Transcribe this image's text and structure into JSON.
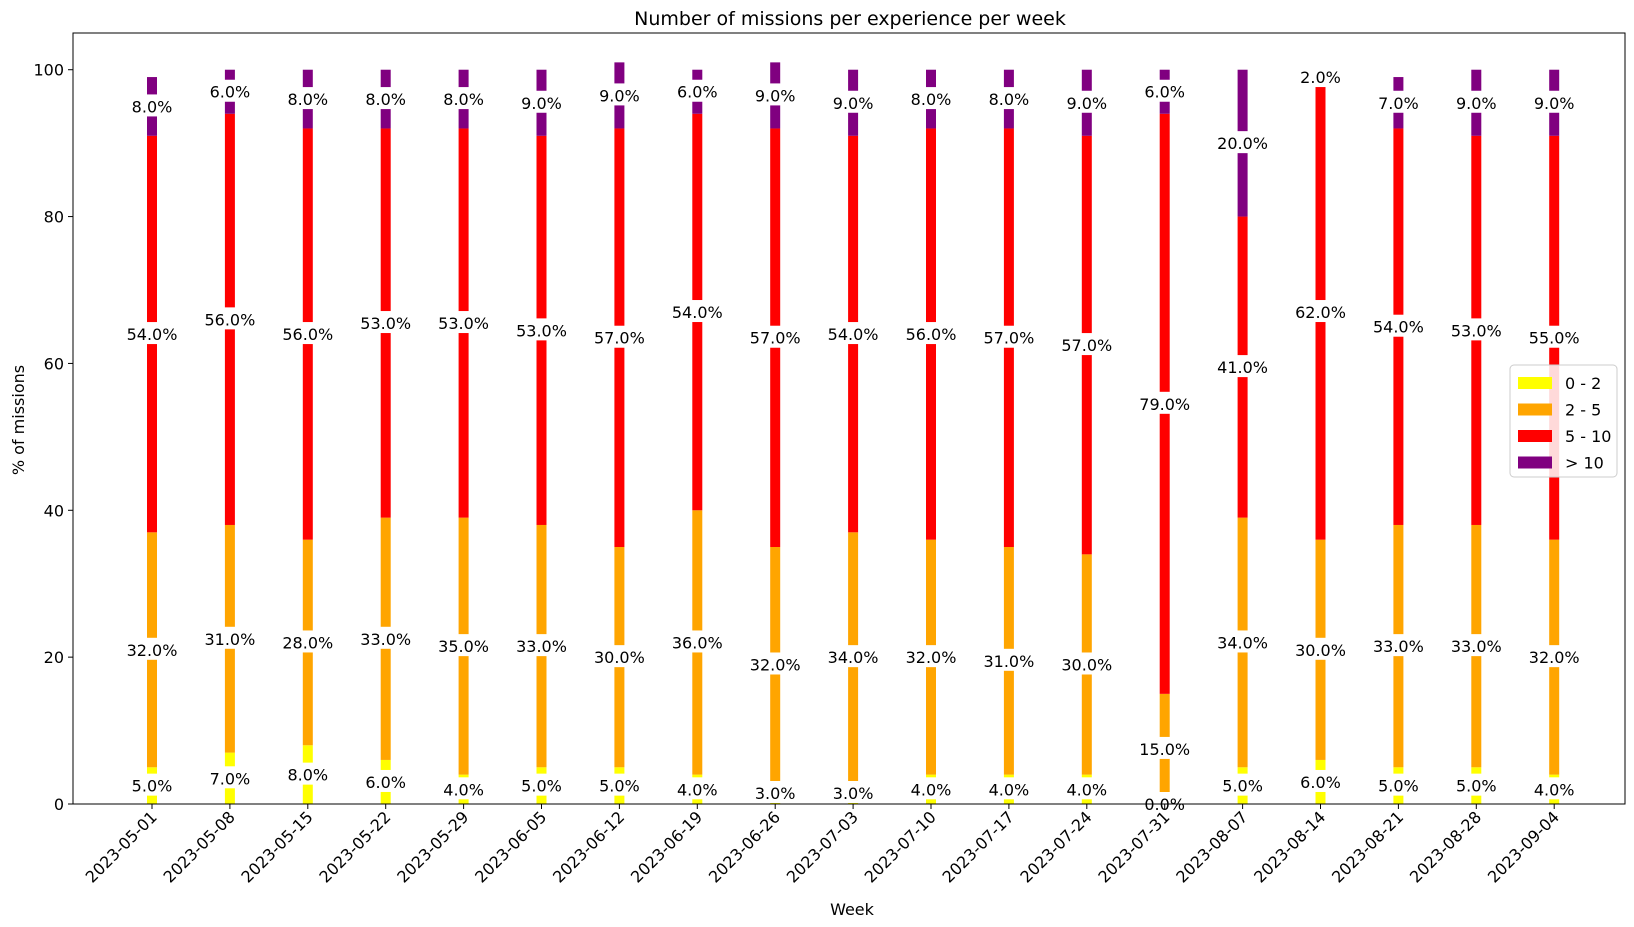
{
  "chart_data": {
    "type": "bar",
    "stacked": true,
    "title": "Number of missions per experience per week",
    "xlabel": "Week",
    "ylabel": "% of missions",
    "ylim": [
      0,
      105
    ],
    "yticks": [
      0,
      20,
      40,
      60,
      80,
      100
    ],
    "grid": false,
    "legend_position": "center-right",
    "categories": [
      "2023-05-01",
      "2023-05-08",
      "2023-05-15",
      "2023-05-22",
      "2023-05-29",
      "2023-06-05",
      "2023-06-12",
      "2023-06-19",
      "2023-06-26",
      "2023-07-03",
      "2023-07-10",
      "2023-07-17",
      "2023-07-24",
      "2023-07-31",
      "2023-08-07",
      "2023-08-14",
      "2023-08-21",
      "2023-08-28",
      "2023-09-04"
    ],
    "series": [
      {
        "name": "0 - 2",
        "color": "#ffff00",
        "values": [
          5,
          7,
          8,
          6,
          4,
          5,
          5,
          4,
          3,
          3,
          4,
          4,
          4,
          0,
          5,
          6,
          5,
          5,
          4
        ],
        "labels": [
          "5.0%",
          "7.0%",
          "8.0%",
          "6.0%",
          "4.0%",
          "5.0%",
          "5.0%",
          "4.0%",
          "3.0%",
          "3.0%",
          "4.0%",
          "4.0%",
          "4.0%",
          "0.0%",
          "5.0%",
          "6.0%",
          "5.0%",
          "5.0%",
          "4.0%"
        ]
      },
      {
        "name": "2 - 5",
        "color": "#ffa500",
        "values": [
          32,
          31,
          28,
          33,
          35,
          33,
          30,
          36,
          32,
          34,
          32,
          31,
          30,
          15,
          34,
          30,
          33,
          33,
          32
        ],
        "labels": [
          "32.0%",
          "31.0%",
          "28.0%",
          "33.0%",
          "35.0%",
          "33.0%",
          "30.0%",
          "36.0%",
          "32.0%",
          "34.0%",
          "32.0%",
          "31.0%",
          "30.0%",
          "15.0%",
          "34.0%",
          "30.0%",
          "33.0%",
          "33.0%",
          "32.0%"
        ]
      },
      {
        "name": "5 - 10",
        "color": "#ff0000",
        "values": [
          54,
          56,
          56,
          53,
          53,
          53,
          57,
          54,
          57,
          54,
          56,
          57,
          57,
          79,
          41,
          62,
          54,
          53,
          55
        ],
        "labels": [
          "54.0%",
          "56.0%",
          "56.0%",
          "53.0%",
          "53.0%",
          "53.0%",
          "57.0%",
          "54.0%",
          "57.0%",
          "54.0%",
          "56.0%",
          "57.0%",
          "57.0%",
          "79.0%",
          "41.0%",
          "62.0%",
          "54.0%",
          "53.0%",
          "55.0%"
        ]
      },
      {
        "name": "> 10",
        "color": "#800080",
        "values": [
          8,
          6,
          8,
          8,
          8,
          9,
          9,
          6,
          9,
          9,
          8,
          8,
          9,
          6,
          20,
          2,
          7,
          9,
          9
        ],
        "labels": [
          "8.0%",
          "6.0%",
          "8.0%",
          "8.0%",
          "8.0%",
          "9.0%",
          "9.0%",
          "6.0%",
          "9.0%",
          "9.0%",
          "8.0%",
          "8.0%",
          "9.0%",
          "6.0%",
          "20.0%",
          "2.0%",
          "7.0%",
          "9.0%",
          "9.0%"
        ]
      }
    ]
  }
}
